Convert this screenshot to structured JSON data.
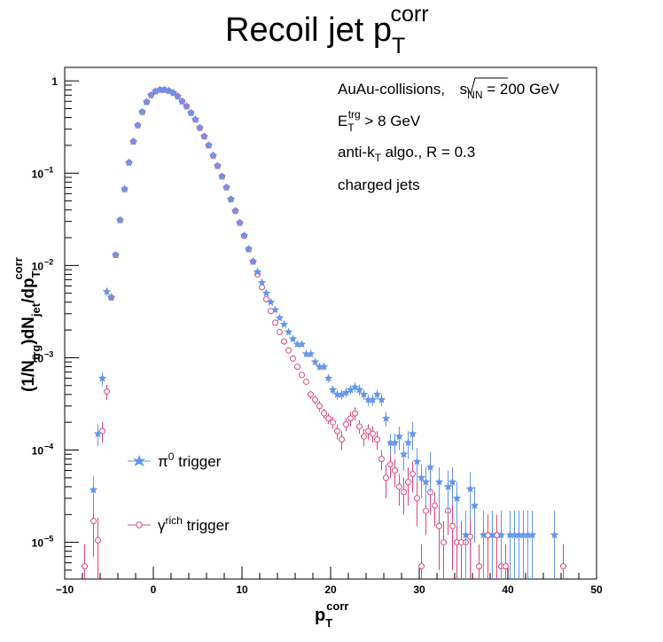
{
  "chart_data": {
    "type": "scatter",
    "title": "Recoil jet p",
    "title_sub": "T",
    "title_sup": "corr",
    "xlabel": {
      "main": "p",
      "sub": "T",
      "sup": "corr"
    },
    "ylabel": {
      "p1": "(1/N",
      "sub1": "trg",
      "p2": ")dN",
      "sub2": "jet",
      "p3": "/dp",
      "sub3": "T",
      "sup3": "corr"
    },
    "xlim": [
      -10,
      50
    ],
    "ylim": [
      4e-06,
      1.4
    ],
    "log_y": true,
    "grid": false,
    "x_ticks": [
      -10,
      0,
      10,
      20,
      30,
      40,
      50
    ],
    "x_tick_labels": [
      "−10",
      "0",
      "10",
      "20",
      "30",
      "40",
      "50"
    ],
    "y_ticks": [
      {
        "value": 1,
        "base": "1",
        "exp": ""
      },
      {
        "value": 0.1,
        "base": "10",
        "exp": "−1"
      },
      {
        "value": 0.01,
        "base": "10",
        "exp": "−2"
      },
      {
        "value": 0.001,
        "base": "10",
        "exp": "−3"
      },
      {
        "value": 0.0001,
        "base": "10",
        "exp": "−4"
      },
      {
        "value": 1e-05,
        "base": "10",
        "exp": "−5"
      }
    ],
    "annotations": {
      "line1_a": "AuAu-collisions, ",
      "line1_s": "s",
      "line1_sub": "NN",
      "line1_b": " = 200 GeV",
      "line2_a": "E",
      "line2_sub": "T",
      "line2_sup": "trg",
      "line2_b": " > 8 GeV",
      "line3_a": "anti-k",
      "line3_sub": "T",
      "line3_b": " algo., R = 0.3",
      "line4": "charged jets"
    },
    "legend": {
      "position": "bottom-left",
      "entry1_a": "π",
      "entry1_sup": "0",
      "entry1_b": " trigger",
      "entry2_a": "γ",
      "entry2_sup": "rich",
      "entry2_b": " trigger"
    },
    "series": [
      {
        "label": "pi0",
        "color": "#6495ed",
        "marker": "star",
        "x": [
          -6.75,
          -6.25,
          -5.75,
          -5.25,
          -4.75,
          -4.25,
          -3.75,
          -3.25,
          -2.75,
          -2.25,
          -1.75,
          -1.25,
          -0.75,
          -0.25,
          0.25,
          0.75,
          1.25,
          1.75,
          2.25,
          2.75,
          3.25,
          3.75,
          4.25,
          4.75,
          5.25,
          5.75,
          6.25,
          6.75,
          7.25,
          7.75,
          8.25,
          8.75,
          9.25,
          9.75,
          10.25,
          10.75,
          11.25,
          11.75,
          12.25,
          12.75,
          13.25,
          13.75,
          14.25,
          14.75,
          15.25,
          15.75,
          16.25,
          16.75,
          17.25,
          17.75,
          18.25,
          18.75,
          19.25,
          19.75,
          20.25,
          20.75,
          21.25,
          21.75,
          22.25,
          22.75,
          23.25,
          23.75,
          24.25,
          24.75,
          25.25,
          25.75,
          26.25,
          26.75,
          27.25,
          27.75,
          28.25,
          28.75,
          29.25,
          29.75,
          30.25,
          30.75,
          31.25,
          32.25,
          33.25,
          33.75,
          34.25,
          35.25,
          35.75,
          36.25,
          37.25,
          38.25,
          39.25,
          40.25,
          40.75,
          41.25,
          41.75,
          42.25,
          42.75,
          45.25
        ],
        "y": [
          3.7e-05,
          0.00015,
          0.0006,
          0.0052,
          0.0045,
          0.013,
          0.031,
          0.067,
          0.13,
          0.22,
          0.33,
          0.46,
          0.59,
          0.7,
          0.77,
          0.8,
          0.8,
          0.78,
          0.74,
          0.68,
          0.6,
          0.53,
          0.45,
          0.38,
          0.31,
          0.25,
          0.2,
          0.155,
          0.12,
          0.092,
          0.07,
          0.052,
          0.039,
          0.029,
          0.021,
          0.015,
          0.011,
          0.0085,
          0.0065,
          0.005,
          0.004,
          0.0033,
          0.0027,
          0.0023,
          0.0019,
          0.0016,
          0.0014,
          0.0014,
          0.0011,
          0.0011,
          0.0009,
          0.0008,
          0.0008,
          0.0006,
          0.00045,
          0.0004,
          0.0004,
          0.00042,
          0.00045,
          0.00048,
          0.00045,
          0.0004,
          0.00035,
          0.00035,
          0.0004,
          0.00035,
          0.00022,
          0.00012,
          0.00012,
          0.00014,
          9e-05,
          0.00012,
          0.00015,
          7.5e-05,
          5e-05,
          4.5e-05,
          6.5e-05,
          4.5e-05,
          4e-05,
          4.5e-05,
          3e-05,
          1.2e-05,
          3.8e-05,
          2.5e-05,
          1.2e-05,
          1.2e-05,
          1.2e-05,
          1.2e-05,
          1.2e-05,
          1.2e-05,
          1.2e-05,
          1.2e-05,
          1.2e-05,
          1.2e-05
        ],
        "err": [
          1.5e-05,
          4e-05,
          0.0001,
          0.0005,
          0.0003,
          0.0008,
          0.0015,
          0.003,
          0.005,
          0.008,
          0.01,
          0.012,
          0.014,
          0.015,
          0.016,
          0.016,
          0.016,
          0.015,
          0.015,
          0.014,
          0.012,
          0.011,
          0.009,
          0.008,
          0.006,
          0.005,
          0.004,
          0.003,
          0.0025,
          0.002,
          0.0015,
          0.0011,
          0.0009,
          0.0007,
          0.0005,
          0.0004,
          0.0003,
          0.00025,
          0.0002,
          0.00017,
          0.00015,
          0.00013,
          0.00012,
          0.00011,
          0.0001,
          9e-05,
          9e-05,
          9e-05,
          8e-05,
          8e-05,
          7e-05,
          7e-05,
          7e-05,
          6e-05,
          5e-05,
          5e-05,
          5e-05,
          5e-05,
          5e-05,
          6e-05,
          6e-05,
          5e-05,
          5e-05,
          5e-05,
          5e-05,
          5e-05,
          4e-05,
          3e-05,
          3e-05,
          4e-05,
          3e-05,
          4e-05,
          5e-05,
          3e-05,
          2e-05,
          2e-05,
          3e-05,
          2e-05,
          2e-05,
          2e-05,
          1.5e-05,
          1e-05,
          2e-05,
          1.5e-05,
          1e-05,
          1e-05,
          1e-05,
          1e-05,
          1e-05,
          1e-05,
          1e-05,
          1e-05,
          1e-05,
          1e-05
        ]
      },
      {
        "label": "gamma-rich",
        "color": "#e0457b",
        "marker": "circle-open",
        "x": [
          -7.75,
          -6.75,
          -6.25,
          -5.75,
          -5.25,
          -4.75,
          -4.25,
          -3.75,
          -3.25,
          -2.75,
          -2.25,
          -1.75,
          -1.25,
          -0.75,
          -0.25,
          0.25,
          0.75,
          1.25,
          1.75,
          2.25,
          2.75,
          3.25,
          3.75,
          4.25,
          4.75,
          5.25,
          5.75,
          6.25,
          6.75,
          7.25,
          7.75,
          8.25,
          8.75,
          9.25,
          9.75,
          10.25,
          10.75,
          11.25,
          11.75,
          12.25,
          12.75,
          13.25,
          13.75,
          14.25,
          14.75,
          15.25,
          15.75,
          16.25,
          16.75,
          17.25,
          17.75,
          18.25,
          18.75,
          19.25,
          19.75,
          20.25,
          20.75,
          21.25,
          21.75,
          22.25,
          22.75,
          23.25,
          23.75,
          24.25,
          24.75,
          25.25,
          25.75,
          26.25,
          26.75,
          27.25,
          27.75,
          28.25,
          28.75,
          29.25,
          29.75,
          30.25,
          30.75,
          31.25,
          31.75,
          32.25,
          32.75,
          33.25,
          33.75,
          34.25,
          34.75,
          35.25,
          35.75,
          36.75,
          37.75,
          38.75,
          39.25,
          39.75,
          46.25
        ],
        "y": [
          5.5e-06,
          1.7e-05,
          1.05e-05,
          0.00016,
          0.00043,
          0.0045,
          0.013,
          0.031,
          0.067,
          0.13,
          0.22,
          0.33,
          0.46,
          0.59,
          0.7,
          0.77,
          0.8,
          0.8,
          0.78,
          0.74,
          0.68,
          0.6,
          0.53,
          0.45,
          0.38,
          0.31,
          0.25,
          0.2,
          0.155,
          0.12,
          0.092,
          0.07,
          0.052,
          0.039,
          0.029,
          0.021,
          0.015,
          0.011,
          0.008,
          0.0058,
          0.0043,
          0.0032,
          0.0024,
          0.0019,
          0.0015,
          0.0012,
          0.00098,
          0.0008,
          0.00065,
          0.00055,
          0.0004,
          0.00035,
          0.0003,
          0.00025,
          0.00022,
          0.0002,
          0.00016,
          0.00013,
          0.00019,
          0.00022,
          0.00025,
          0.00018,
          0.00014,
          0.00016,
          0.00015,
          0.00013,
          8e-05,
          5e-05,
          7e-05,
          6e-05,
          4e-05,
          3.5e-05,
          4.5e-05,
          5.5e-05,
          3e-05,
          5.5e-06,
          2.2e-05,
          3.5e-05,
          2.5e-05,
          1.5e-05,
          1e-05,
          2.2e-05,
          1.5e-05,
          1e-05,
          1e-05,
          1e-05,
          1.15e-05,
          5.5e-06,
          1.2e-05,
          1.2e-05,
          5.5e-06,
          5.5e-06,
          5.5e-06
        ],
        "err": [
          4e-06,
          1e-05,
          8e-06,
          4e-05,
          8e-05,
          0.0003,
          0.0008,
          0.0015,
          0.003,
          0.005,
          0.008,
          0.01,
          0.012,
          0.014,
          0.015,
          0.016,
          0.016,
          0.016,
          0.015,
          0.015,
          0.014,
          0.012,
          0.011,
          0.009,
          0.008,
          0.006,
          0.005,
          0.004,
          0.003,
          0.0025,
          0.002,
          0.0015,
          0.0011,
          0.0009,
          0.0007,
          0.0005,
          0.0004,
          0.0003,
          0.00025,
          0.0002,
          0.00015,
          0.00012,
          0.0001,
          9e-05,
          8e-05,
          7e-05,
          6e-05,
          5e-05,
          5e-05,
          4e-05,
          4e-05,
          4e-05,
          4e-05,
          3e-05,
          3e-05,
          3e-05,
          3e-05,
          3e-05,
          3e-05,
          4e-05,
          4e-05,
          3e-05,
          3e-05,
          3e-05,
          3e-05,
          3e-05,
          2e-05,
          2e-05,
          2e-05,
          2e-05,
          1.5e-05,
          1.5e-05,
          2e-05,
          2e-05,
          1.5e-05,
          4e-06,
          1e-05,
          1.5e-05,
          1e-05,
          1e-05,
          7e-06,
          1e-05,
          1e-05,
          7e-06,
          7e-06,
          7e-06,
          8e-06,
          4e-06,
          8e-06,
          8e-06,
          4e-06,
          4e-06,
          4e-06
        ]
      }
    ]
  }
}
